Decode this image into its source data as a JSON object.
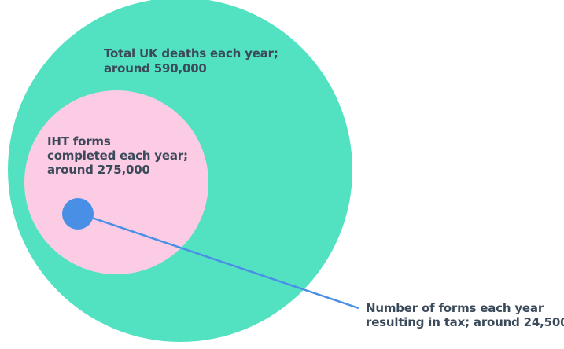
{
  "diagram": {
    "outer": {
      "line1": "Total UK deaths each year;",
      "line2": "around 590,000",
      "value": 590000,
      "color": "#52e2c1"
    },
    "middle": {
      "line1": "IHT forms",
      "line2": "completed each year;",
      "line3": "around 275,000",
      "value": 275000,
      "color": "#fccbe4"
    },
    "inner": {
      "line1": "Number of forms each year",
      "line2": "resulting in tax; around 24,500",
      "value": 24500,
      "color": "#4a8fe6"
    },
    "text_color": "#3b4a5a",
    "connector_color": "#4a8fe6"
  }
}
